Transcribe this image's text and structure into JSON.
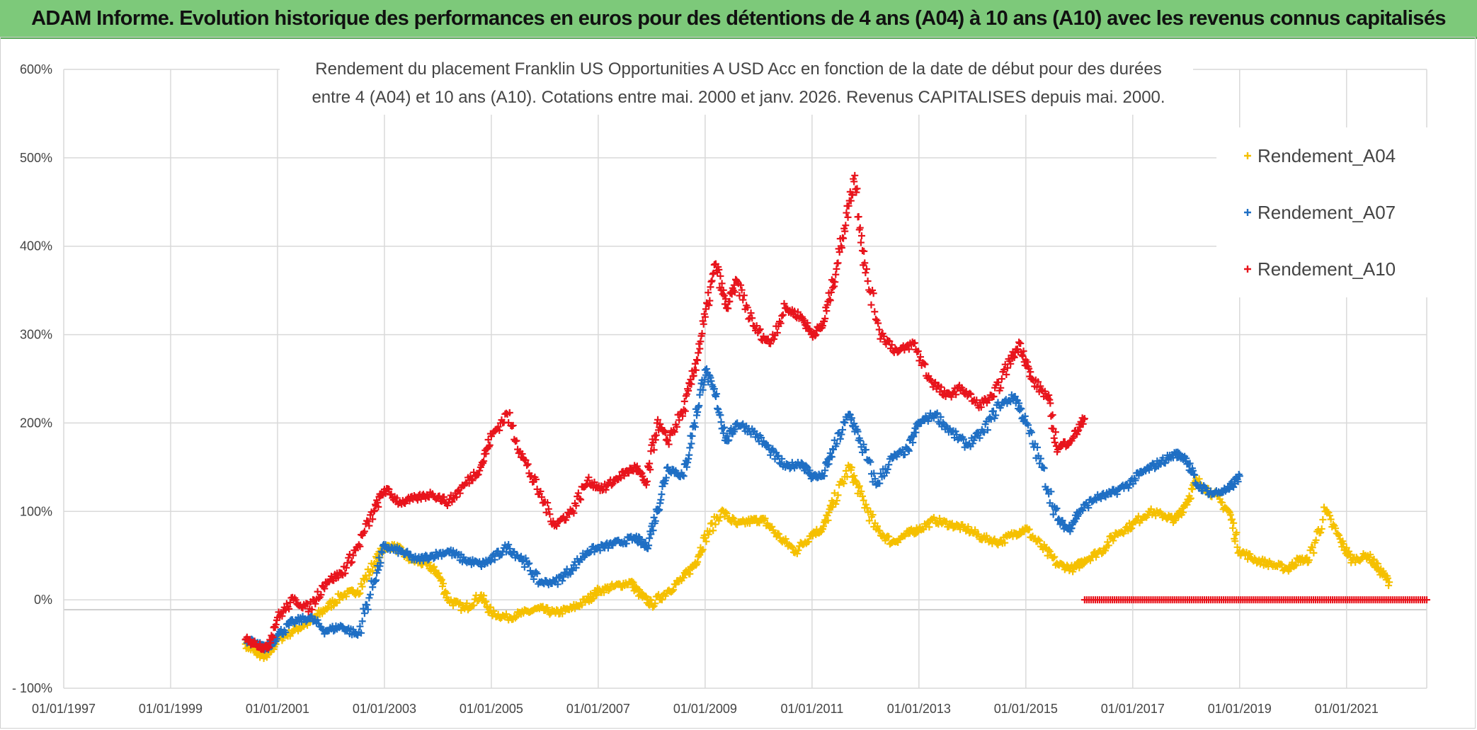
{
  "banner": {
    "text": "ADAM Informe. Evolution historique des performances en euros pour des détentions de 4 ans (A04) à 10 ans (A10) avec les revenus connus capitalisés"
  },
  "colors": {
    "banner_bg": "#7dc97a",
    "A04": "#f5c000",
    "A07": "#1f6fc4",
    "A10": "#e8141c",
    "grid": "#d9d9d9"
  },
  "chart_data": {
    "type": "scatter",
    "title_line1": "Rendement du placement Franklin US Opportunities A USD Acc en fonction de la date de début pour des durées",
    "title_line2": "entre 4 (A04) et 10 ans (A10). Cotations entre mai. 2000 et janv. 2026. Revenus CAPITALISES depuis mai. 2000.",
    "x_range": [
      1997.0,
      2022.5
    ],
    "ylim": [
      -100,
      600
    ],
    "y_ticks": [
      {
        "value": 600,
        "label": "600%"
      },
      {
        "value": 500,
        "label": "500%"
      },
      {
        "value": 400,
        "label": "400%"
      },
      {
        "value": 300,
        "label": "300%"
      },
      {
        "value": 200,
        "label": "200%"
      },
      {
        "value": 100,
        "label": "100%"
      },
      {
        "value": 0,
        "label": "0%"
      },
      {
        "value": -100,
        "label": "- 100%"
      }
    ],
    "x_ticks": [
      {
        "value": 1997,
        "label": "01/01/1997"
      },
      {
        "value": 1999,
        "label": "01/01/1999"
      },
      {
        "value": 2001,
        "label": "01/01/2001"
      },
      {
        "value": 2003,
        "label": "01/01/2003"
      },
      {
        "value": 2005,
        "label": "01/01/2005"
      },
      {
        "value": 2007,
        "label": "01/01/2007"
      },
      {
        "value": 2009,
        "label": "01/01/2009"
      },
      {
        "value": 2011,
        "label": "01/01/2011"
      },
      {
        "value": 2013,
        "label": "01/01/2013"
      },
      {
        "value": 2015,
        "label": "01/01/2015"
      },
      {
        "value": 2017,
        "label": "01/01/2017"
      },
      {
        "value": 2019,
        "label": "01/01/2019"
      },
      {
        "value": 2021,
        "label": "01/01/2021"
      }
    ],
    "series": [
      {
        "name": "Rendement_A04",
        "x": [
          2000.4,
          2000.6,
          2000.8,
          2001.0,
          2001.3,
          2001.6,
          2001.9,
          2002.2,
          2002.5,
          2002.8,
          2003.0,
          2003.2,
          2003.5,
          2003.8,
          2004.0,
          2004.2,
          2004.5,
          2004.8,
          2005.0,
          2005.3,
          2005.6,
          2005.9,
          2006.2,
          2006.5,
          2006.8,
          2007.0,
          2007.3,
          2007.6,
          2007.8,
          2008.0,
          2008.3,
          2008.6,
          2008.8,
          2009.0,
          2009.3,
          2009.6,
          2009.9,
          2010.1,
          2010.4,
          2010.7,
          2011.0,
          2011.2,
          2011.4,
          2011.7,
          2011.9,
          2012.2,
          2012.5,
          2012.8,
          2013.0,
          2013.3,
          2013.6,
          2013.9,
          2014.2,
          2014.5,
          2014.8,
          2015.0,
          2015.3,
          2015.6,
          2015.9,
          2016.1,
          2016.4,
          2016.7,
          2017.0,
          2017.3,
          2017.6,
          2017.8,
          2018.0,
          2018.2,
          2018.5,
          2018.8,
          2019.0,
          2019.3,
          2019.6,
          2019.9,
          2020.1,
          2020.3,
          2020.6,
          2020.9,
          2021.1,
          2021.4,
          2021.6,
          2021.8
        ],
        "y": [
          -50,
          -60,
          -65,
          -45,
          -35,
          -25,
          -10,
          5,
          10,
          40,
          60,
          60,
          45,
          40,
          30,
          0,
          -10,
          5,
          -15,
          -20,
          -15,
          -10,
          -15,
          -10,
          0,
          10,
          15,
          20,
          5,
          -5,
          10,
          25,
          40,
          70,
          100,
          85,
          90,
          90,
          70,
          55,
          75,
          80,
          110,
          150,
          120,
          80,
          65,
          75,
          80,
          90,
          85,
          80,
          70,
          65,
          75,
          80,
          60,
          40,
          35,
          45,
          55,
          75,
          85,
          100,
          95,
          90,
          110,
          135,
          120,
          100,
          55,
          45,
          40,
          35,
          45,
          45,
          100,
          65,
          45,
          50,
          35,
          20
        ]
      },
      {
        "name": "Rendement_A07",
        "x": [
          2000.4,
          2000.6,
          2000.8,
          2001.0,
          2001.3,
          2001.6,
          2001.9,
          2002.2,
          2002.5,
          2002.8,
          2003.0,
          2003.3,
          2003.6,
          2003.9,
          2004.2,
          2004.5,
          2004.8,
          2005.0,
          2005.3,
          2005.6,
          2005.9,
          2006.2,
          2006.5,
          2006.8,
          2007.1,
          2007.4,
          2007.7,
          2007.9,
          2008.1,
          2008.3,
          2008.6,
          2008.8,
          2009.0,
          2009.2,
          2009.4,
          2009.6,
          2009.9,
          2010.2,
          2010.5,
          2010.8,
          2011.0,
          2011.2,
          2011.4,
          2011.7,
          2011.9,
          2012.2,
          2012.5,
          2012.8,
          2013.0,
          2013.3,
          2013.6,
          2013.9,
          2014.2,
          2014.5,
          2014.8,
          2015.0,
          2015.3,
          2015.6,
          2015.8,
          2016.0,
          2016.3,
          2016.6,
          2016.9,
          2017.2,
          2017.5,
          2017.8,
          2018.0,
          2018.2,
          2018.5,
          2018.8,
          2019.0
        ],
        "y": [
          -45,
          -50,
          -55,
          -40,
          -25,
          -20,
          -35,
          -30,
          -40,
          20,
          60,
          55,
          45,
          50,
          55,
          45,
          40,
          45,
          60,
          45,
          20,
          20,
          35,
          55,
          60,
          65,
          70,
          60,
          100,
          150,
          140,
          200,
          260,
          230,
          180,
          200,
          190,
          170,
          150,
          155,
          140,
          140,
          170,
          210,
          180,
          130,
          160,
          170,
          200,
          210,
          190,
          175,
          190,
          220,
          230,
          200,
          150,
          90,
          80,
          100,
          115,
          120,
          130,
          145,
          155,
          165,
          160,
          130,
          120,
          125,
          140
        ]
      },
      {
        "name": "Rendement_A10",
        "x": [
          2000.4,
          2000.6,
          2000.8,
          2001.0,
          2001.3,
          2001.6,
          2001.9,
          2002.2,
          2002.5,
          2002.8,
          2003.0,
          2003.3,
          2003.6,
          2003.9,
          2004.2,
          2004.5,
          2004.8,
          2005.0,
          2005.3,
          2005.6,
          2005.9,
          2006.2,
          2006.5,
          2006.8,
          2007.1,
          2007.4,
          2007.7,
          2007.9,
          2008.1,
          2008.3,
          2008.6,
          2008.8,
          2009.0,
          2009.2,
          2009.4,
          2009.6,
          2009.9,
          2010.2,
          2010.5,
          2010.8,
          2011.0,
          2011.2,
          2011.4,
          2011.6,
          2011.8,
          2012.0,
          2012.3,
          2012.6,
          2012.9,
          2013.2,
          2013.5,
          2013.8,
          2014.1,
          2014.4,
          2014.7,
          2014.9,
          2015.1,
          2015.4,
          2015.6,
          2015.9,
          2016.1
        ],
        "y": [
          -45,
          -50,
          -55,
          -20,
          0,
          -10,
          20,
          30,
          60,
          100,
          125,
          110,
          115,
          120,
          110,
          130,
          150,
          185,
          210,
          160,
          120,
          85,
          100,
          135,
          125,
          140,
          150,
          130,
          200,
          180,
          215,
          260,
          320,
          380,
          330,
          360,
          310,
          290,
          330,
          320,
          300,
          310,
          360,
          420,
          480,
          370,
          300,
          280,
          290,
          250,
          230,
          240,
          220,
          230,
          270,
          290,
          250,
          230,
          170,
          185,
          205
        ]
      }
    ],
    "zero_series": {
      "from": 2016.1,
      "to": 2022.5,
      "y": 0,
      "series": "Rendement_A10"
    }
  }
}
